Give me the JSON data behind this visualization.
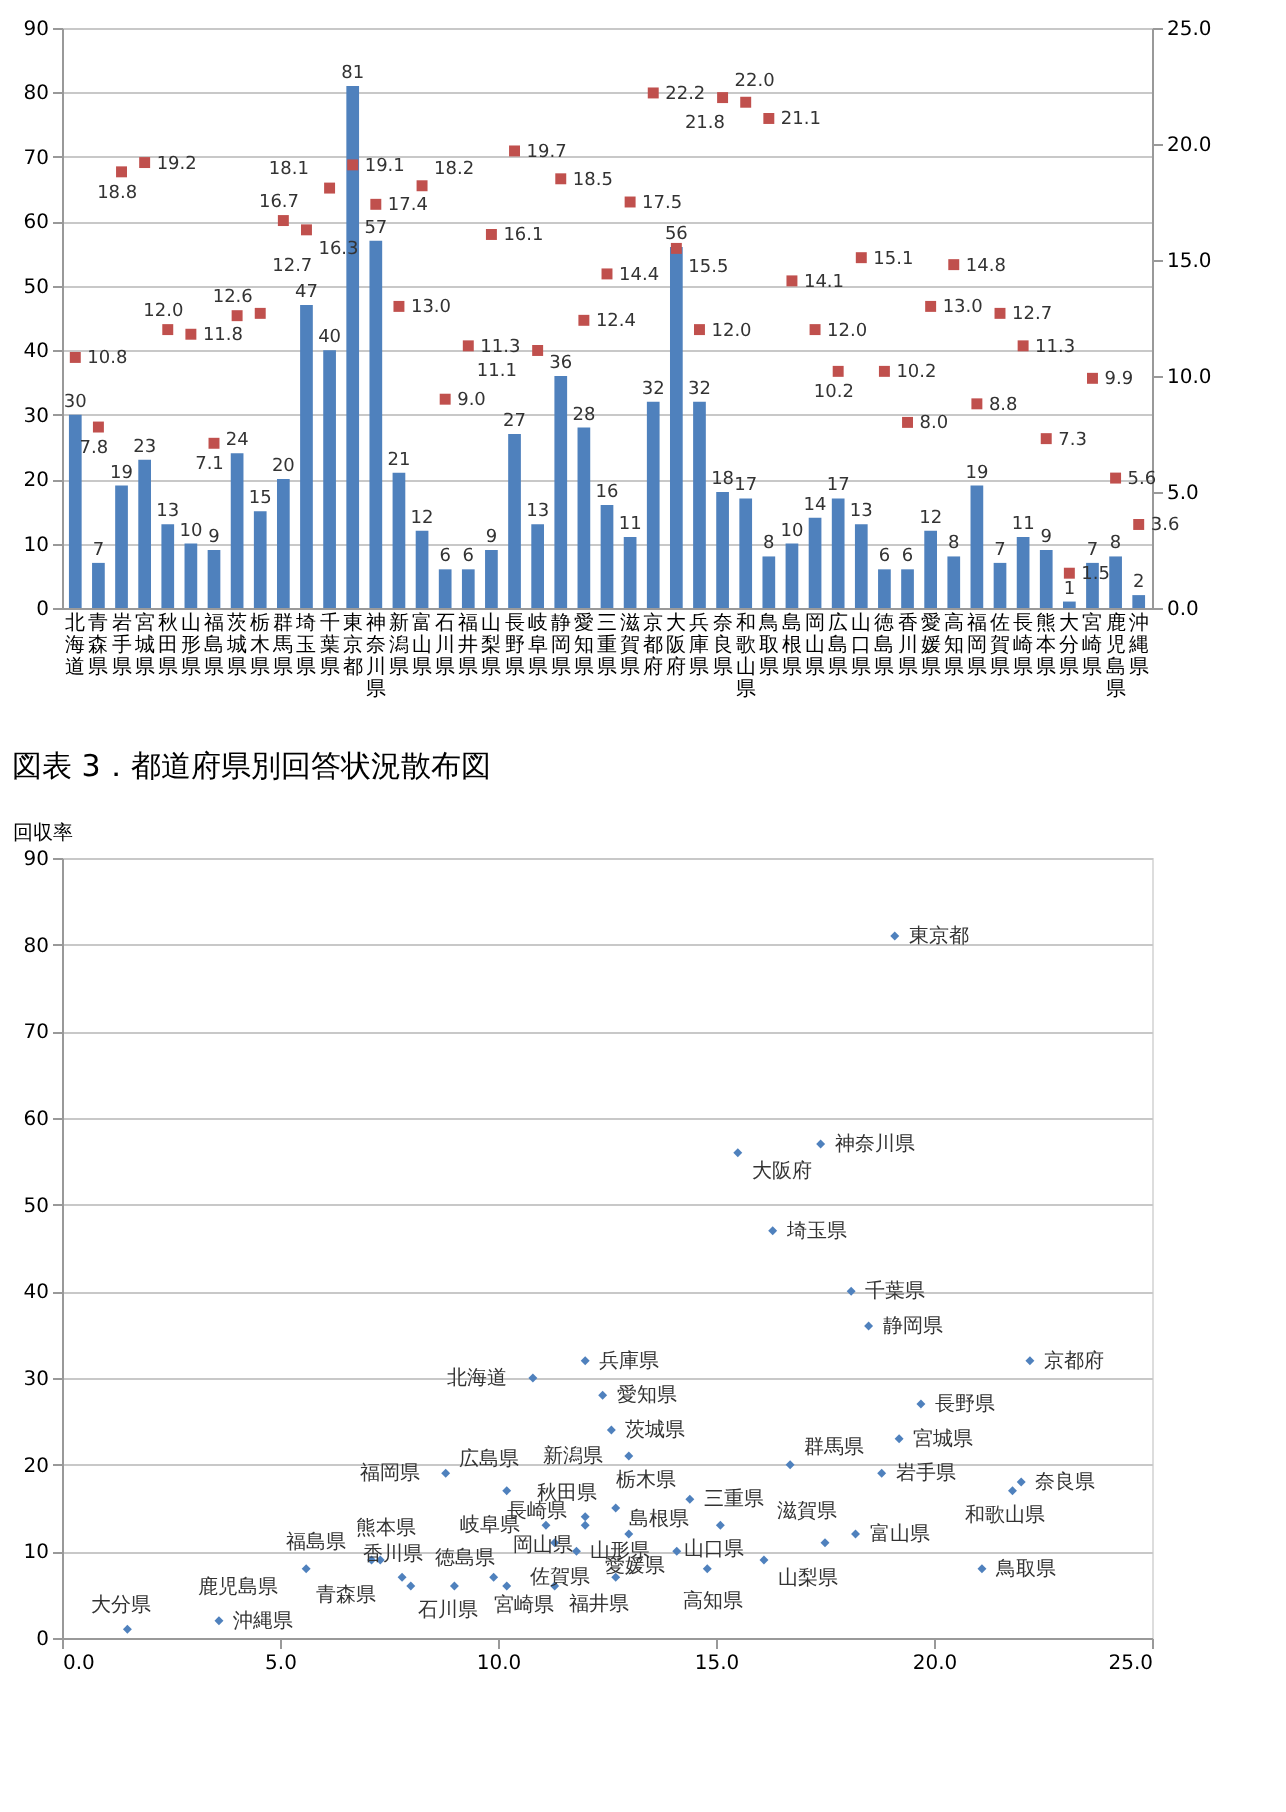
{
  "chart_data": [
    {
      "type": "bar",
      "categories": [
        "北海道",
        "青森県",
        "岩手県",
        "宮城県",
        "秋田県",
        "山形県",
        "福島県",
        "茨城県",
        "栃木県",
        "群馬県",
        "埼玉県",
        "千葉県",
        "東京都",
        "神奈川県",
        "新潟県",
        "富山県",
        "石川県",
        "福井県",
        "山梨県",
        "長野県",
        "岐阜県",
        "静岡県",
        "愛知県",
        "三重県",
        "滋賀県",
        "京都府",
        "大阪府",
        "兵庫県",
        "奈良県",
        "和歌山県",
        "鳥取県",
        "島根県",
        "岡山県",
        "広島県",
        "山口県",
        "徳島県",
        "香川県",
        "愛媛県",
        "高知県",
        "福岡県",
        "佐賀県",
        "長崎県",
        "熊本県",
        "大分県",
        "宮崎県",
        "鹿児島県",
        "沖縄県"
      ],
      "series": [
        {
          "type": "bar",
          "color": "#4f81bd",
          "values": [
            30,
            7,
            19,
            23,
            13,
            10,
            9,
            24,
            15,
            20,
            47,
            40,
            81,
            57,
            21,
            12,
            6,
            6,
            9,
            27,
            13,
            36,
            28,
            16,
            11,
            32,
            56,
            32,
            18,
            17,
            8,
            10,
            14,
            17,
            13,
            6,
            6,
            12,
            8,
            19,
            7,
            11,
            9,
            1,
            7,
            8,
            2
          ]
        },
        {
          "type": "scatter",
          "axis": "y2",
          "color": "#c0504d",
          "marker": "square",
          "values": [
            10.8,
            7.8,
            18.8,
            19.2,
            12.0,
            11.8,
            7.1,
            12.6,
            12.7,
            16.7,
            16.3,
            18.1,
            19.1,
            17.4,
            13.0,
            18.2,
            9.0,
            11.3,
            16.1,
            19.7,
            11.1,
            18.5,
            12.4,
            14.4,
            17.5,
            22.2,
            15.5,
            12.0,
            22.0,
            21.8,
            21.1,
            14.1,
            12.0,
            10.2,
            15.1,
            10.2,
            8.0,
            13.0,
            14.8,
            8.8,
            12.7,
            11.3,
            7.3,
            1.5,
            9.9,
            5.6,
            3.6
          ],
          "value_labels": [
            "10.8",
            "7.8",
            "18.8",
            "19.2",
            "12.0",
            "11.8",
            "7.1",
            "12.6",
            "12.7",
            "16.7",
            "16.3",
            "18.1",
            "19.1",
            "17.4",
            "13.0",
            "18.2",
            "9.0",
            "11.3",
            "16.1",
            "19.7",
            "11.1",
            "18.5",
            "12.4",
            "14.4",
            "17.5",
            "22.2",
            "15.5",
            "12.0",
            "22.0",
            "21.8",
            "21.1",
            "14.1",
            "12.0",
            "10.2",
            "15.1",
            "10.2",
            "8.0",
            "13.0",
            "14.8",
            "8.8",
            "12.7",
            "11.3",
            "7.3",
            "1.5",
            "9.9",
            "5.6",
            "3.6"
          ]
        }
      ],
      "ylim": [
        0,
        90
      ],
      "yticks": [
        0,
        10,
        20,
        30,
        40,
        50,
        60,
        70,
        80,
        90
      ],
      "y2lim": [
        0,
        25
      ],
      "y2ticks": [
        {
          "value": 0,
          "label": "0.0"
        },
        {
          "value": 5,
          "label": "5.0"
        },
        {
          "value": 10,
          "label": "10.0"
        },
        {
          "value": 15,
          "label": "15.0"
        },
        {
          "value": 20,
          "label": "20.0"
        },
        {
          "value": 25,
          "label": "25.0"
        }
      ],
      "grid": "y",
      "data_labels": true
    },
    {
      "type": "scatter",
      "title": "図表 3．都道府県別回答状況散布図",
      "ylabel": "回収率",
      "color": "#4f81bd",
      "marker": "diamond",
      "x": [
        10.8,
        7.8,
        18.8,
        19.2,
        12.0,
        11.8,
        7.1,
        12.6,
        12.7,
        16.7,
        16.3,
        18.1,
        19.1,
        17.4,
        13.0,
        18.2,
        9.0,
        11.3,
        16.1,
        19.7,
        11.1,
        18.5,
        12.4,
        14.4,
        17.5,
        22.2,
        15.5,
        12.0,
        22.0,
        21.8,
        21.1,
        14.1,
        12.0,
        10.2,
        15.1,
        10.2,
        8.0,
        13.0,
        14.8,
        8.8,
        12.7,
        11.3,
        7.3,
        1.5,
        9.9,
        5.6,
        3.6
      ],
      "values": [
        30,
        7,
        19,
        23,
        13,
        10,
        9,
        24,
        15,
        20,
        47,
        40,
        81,
        57,
        21,
        12,
        6,
        6,
        9,
        27,
        13,
        36,
        28,
        16,
        11,
        32,
        56,
        32,
        18,
        17,
        8,
        10,
        14,
        17,
        13,
        6,
        6,
        12,
        8,
        19,
        7,
        11,
        9,
        1,
        7,
        8,
        2
      ],
      "xlim": [
        0,
        25
      ],
      "xticks": [
        {
          "value": 0,
          "label": "0.0"
        },
        {
          "value": 5,
          "label": "5.0"
        },
        {
          "value": 10,
          "label": "10.0"
        },
        {
          "value": 15,
          "label": "15.0"
        },
        {
          "value": 20,
          "label": "20.0"
        },
        {
          "value": 25,
          "label": "25.0"
        }
      ],
      "ylim": [
        0,
        90
      ],
      "yticks": [
        0,
        10,
        20,
        30,
        40,
        50,
        60,
        70,
        80,
        90
      ],
      "grid": "y",
      "annotations": [
        {
          "text": "北海道",
          "x": 10.8,
          "y": 30
        },
        {
          "text": "青森県",
          "x": 7.8,
          "y": 7
        },
        {
          "text": "岩手県",
          "x": 18.8,
          "y": 19
        },
        {
          "text": "宮城県",
          "x": 19.2,
          "y": 23
        },
        {
          "text": "秋田県",
          "x": 12.0,
          "y": 13
        },
        {
          "text": "山形県",
          "x": 11.8,
          "y": 10
        },
        {
          "text": "福島県",
          "x": 7.1,
          "y": 9
        },
        {
          "text": "茨城県",
          "x": 12.6,
          "y": 24
        },
        {
          "text": "栃木県",
          "x": 12.7,
          "y": 15
        },
        {
          "text": "群馬県",
          "x": 16.7,
          "y": 20
        },
        {
          "text": "埼玉県",
          "x": 16.3,
          "y": 47
        },
        {
          "text": "千葉県",
          "x": 18.1,
          "y": 40
        },
        {
          "text": "東京都",
          "x": 19.1,
          "y": 81
        },
        {
          "text": "神奈川県",
          "x": 17.4,
          "y": 57
        },
        {
          "text": "新潟県",
          "x": 13.0,
          "y": 21
        },
        {
          "text": "富山県",
          "x": 18.2,
          "y": 12
        },
        {
          "text": "石川県",
          "x": 9.0,
          "y": 6
        },
        {
          "text": "福井県",
          "x": 11.3,
          "y": 6
        },
        {
          "text": "山梨県",
          "x": 16.1,
          "y": 9
        },
        {
          "text": "長野県",
          "x": 19.7,
          "y": 27
        },
        {
          "text": "岐阜県",
          "x": 11.1,
          "y": 13
        },
        {
          "text": "静岡県",
          "x": 18.5,
          "y": 36
        },
        {
          "text": "愛知県",
          "x": 12.4,
          "y": 28
        },
        {
          "text": "三重県",
          "x": 14.4,
          "y": 16
        },
        {
          "text": "滋賀県",
          "x": 17.5,
          "y": 11
        },
        {
          "text": "京都府",
          "x": 22.2,
          "y": 32
        },
        {
          "text": "大阪府",
          "x": 15.5,
          "y": 56
        },
        {
          "text": "兵庫県",
          "x": 12.0,
          "y": 32
        },
        {
          "text": "奈良県",
          "x": 22.0,
          "y": 18
        },
        {
          "text": "和歌山県",
          "x": 21.8,
          "y": 17
        },
        {
          "text": "鳥取県",
          "x": 21.1,
          "y": 8
        },
        {
          "text": "島根県",
          "x": 14.1,
          "y": 10
        },
        {
          "text": "岡山県",
          "x": 12.0,
          "y": 14
        },
        {
          "text": "広島県",
          "x": 10.2,
          "y": 17
        },
        {
          "text": "山口県",
          "x": 15.1,
          "y": 13
        },
        {
          "text": "徳島県",
          "x": 10.2,
          "y": 6
        },
        {
          "text": "香川県",
          "x": 8.0,
          "y": 6
        },
        {
          "text": "愛媛県",
          "x": 13.0,
          "y": 12
        },
        {
          "text": "高知県",
          "x": 14.8,
          "y": 8
        },
        {
          "text": "福岡県",
          "x": 8.8,
          "y": 19
        },
        {
          "text": "佐賀県",
          "x": 12.7,
          "y": 7
        },
        {
          "text": "長崎県",
          "x": 11.3,
          "y": 11
        },
        {
          "text": "熊本県",
          "x": 7.3,
          "y": 9
        },
        {
          "text": "大分県",
          "x": 1.5,
          "y": 1
        },
        {
          "text": "宮崎県",
          "x": 9.9,
          "y": 7
        },
        {
          "text": "鹿児島県",
          "x": 5.6,
          "y": 8
        },
        {
          "text": "沖縄県",
          "x": 3.6,
          "y": 2
        }
      ]
    }
  ]
}
